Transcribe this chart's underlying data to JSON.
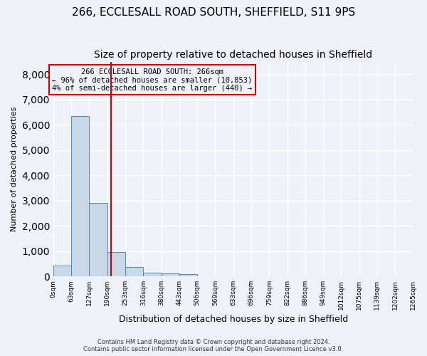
{
  "title1": "266, ECCLESALL ROAD SOUTH, SHEFFIELD, S11 9PS",
  "title2": "Size of property relative to detached houses in Sheffield",
  "xlabel": "Distribution of detached houses by size in Sheffield",
  "ylabel": "Number of detached properties",
  "annotation_line1": "266 ECCLESALL ROAD SOUTH: 266sqm",
  "annotation_line2": "← 96% of detached houses are smaller (10,853)",
  "annotation_line3": "4% of semi-detached houses are larger (440) →",
  "footer1": "Contains HM Land Registry data © Crown copyright and database right 2024.",
  "footer2": "Contains public sector information licensed under the Open Government Licence v3.0.",
  "bin_labels": [
    "0sqm",
    "63sqm",
    "127sqm",
    "190sqm",
    "253sqm",
    "316sqm",
    "380sqm",
    "443sqm",
    "506sqm",
    "569sqm",
    "633sqm",
    "696sqm",
    "759sqm",
    "822sqm",
    "886sqm",
    "949sqm",
    "1012sqm",
    "1075sqm",
    "1139sqm",
    "1202sqm",
    "1265sqm"
  ],
  "bar_values": [
    430,
    6350,
    2900,
    970,
    380,
    155,
    110,
    75,
    0,
    0,
    0,
    0,
    0,
    0,
    0,
    0,
    0,
    0,
    0,
    0
  ],
  "bar_color": "#c8d8e8",
  "bar_edge_color": "#5588aa",
  "property_line_x": 3.2,
  "property_line_color": "#cc0000",
  "ylim": [
    0,
    8500
  ],
  "yticks": [
    0,
    1000,
    2000,
    3000,
    4000,
    5000,
    6000,
    7000,
    8000
  ],
  "bg_color": "#eef2f8",
  "grid_color": "#ffffff",
  "annotation_box_color": "#cc0000",
  "title1_fontsize": 11,
  "title2_fontsize": 10
}
